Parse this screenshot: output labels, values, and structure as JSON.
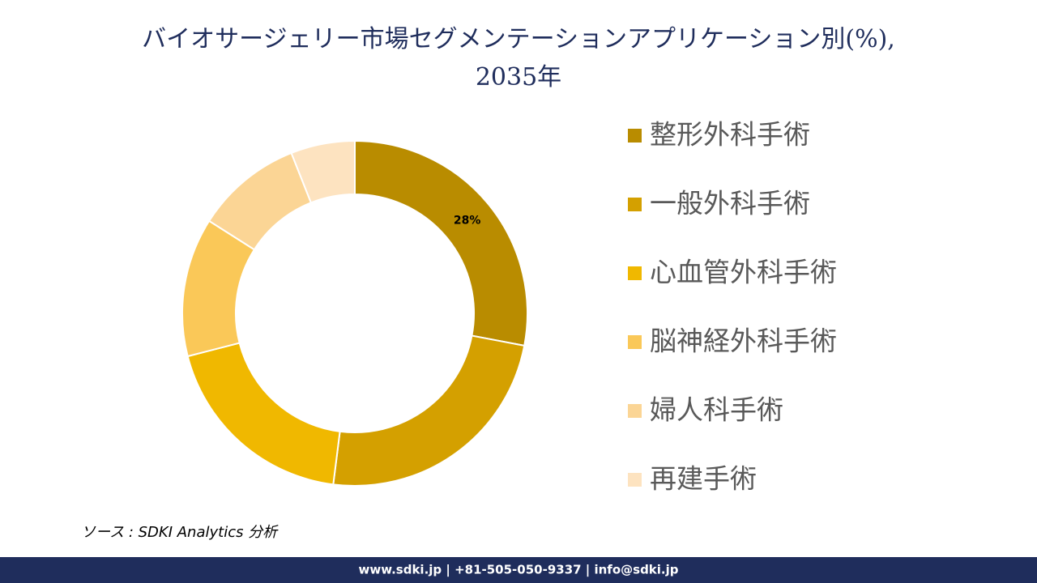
{
  "chart_data": {
    "type": "donut",
    "title": [
      "バイオサージェリー市場セグメンテーションアプリケーション別(%),",
      "2035年"
    ],
    "categories": [
      "整形外科手術",
      "一般外科手術",
      "心血管外科手術",
      "脳神経外科手術",
      "婦人科手術",
      "再建手術"
    ],
    "values": [
      28,
      24,
      19,
      13,
      10,
      6
    ],
    "value_labels": [
      "28%",
      null,
      null,
      null,
      null,
      null
    ],
    "colors": [
      "#B98C00",
      "#D4A000",
      "#F0B800",
      "#FAC858",
      "#FBD595",
      "#FDE3C0"
    ],
    "source": "ソース : SDKI Analytics 分析",
    "footer": "www.sdki.jp | +81-505-050-9337 | info@sdki.jp"
  }
}
